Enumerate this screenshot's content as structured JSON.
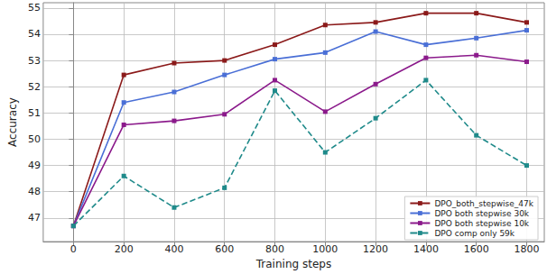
{
  "chart_data": {
    "type": "line",
    "x_label": "Training steps",
    "y_label": "Accuracy",
    "x": [
      0,
      200,
      400,
      600,
      800,
      1000,
      1200,
      1400,
      1600,
      1800
    ],
    "series": [
      {
        "name": "DPO_both_stepwise_47k",
        "color": "#8b1a1a",
        "marker": "square",
        "line_style": "solid",
        "values": [
          46.7,
          52.45,
          52.9,
          53.0,
          53.6,
          54.35,
          54.45,
          54.8,
          54.8,
          54.45
        ]
      },
      {
        "name": "DPO both stepwise 30k",
        "color": "#4a6fd6",
        "marker": "square",
        "line_style": "solid",
        "values": [
          46.7,
          51.4,
          51.8,
          52.45,
          53.05,
          53.3,
          54.1,
          53.6,
          53.85,
          54.15
        ]
      },
      {
        "name": "DPO both stepwise 10k",
        "color": "#8b1a8b",
        "marker": "square",
        "line_style": "solid",
        "values": [
          46.7,
          50.55,
          50.7,
          50.95,
          52.25,
          51.05,
          52.1,
          53.1,
          53.2,
          52.95
        ]
      },
      {
        "name": "DPO comp only 59k",
        "color": "#1f8a8a",
        "marker": "square",
        "line_style": "dashed",
        "values": [
          46.7,
          48.6,
          47.4,
          48.15,
          51.85,
          49.5,
          50.8,
          52.25,
          50.15,
          49.0
        ]
      }
    ],
    "xlim": [
      -120,
      1870
    ],
    "xticks": [
      0,
      200,
      400,
      600,
      800,
      1000,
      1200,
      1400,
      1600,
      1800
    ],
    "ylim": [
      46.1,
      55.2
    ],
    "yticks": [
      47,
      48,
      49,
      50,
      51,
      52,
      53,
      54,
      55
    ],
    "grid": true,
    "legend": "lower right"
  }
}
